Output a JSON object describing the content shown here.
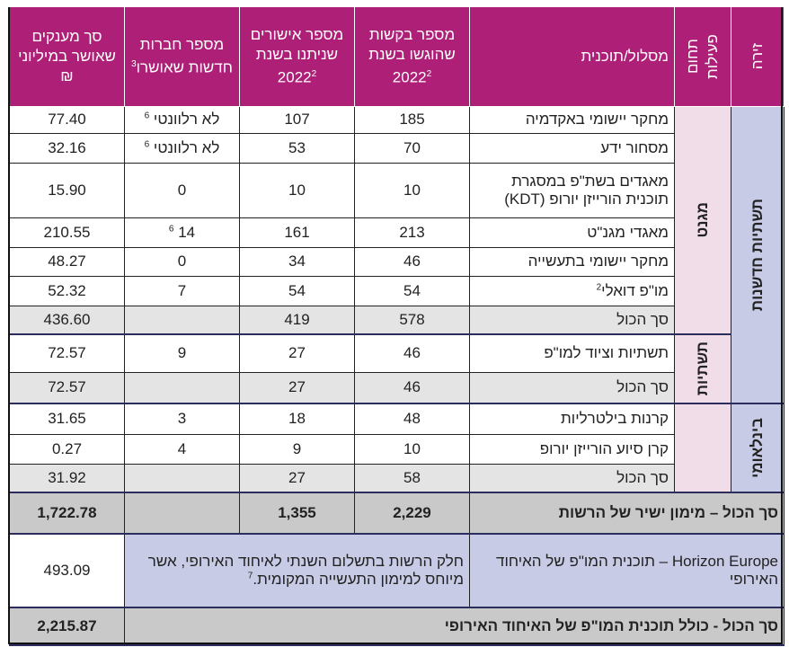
{
  "header": {
    "arena": "זירה",
    "area": "תחום פעילות",
    "program": "מסלול/תוכנית",
    "requests": "מספר בקשות שהוגשו בשנת 2022",
    "requests_sup": "2",
    "approvals": "מספר אישורים שניתנו בשנת 2022",
    "approvals_sup": "2",
    "new_companies": "מספר חברות חדשות שאושרו",
    "new_companies_sup": "3",
    "amount": "סך מענקים שאושר במיליוני ₪"
  },
  "groups": [
    {
      "arena": "תשתיות חדשנות",
      "area": "מגנט",
      "rows": [
        {
          "program": "מחקר יישומי באקדמיה",
          "requests": "185",
          "approvals": "107",
          "new_companies": "לא רלוונטי",
          "nc_sup": "6",
          "amount": "77.40"
        },
        {
          "program": "מסחור ידע",
          "requests": "70",
          "approvals": "53",
          "new_companies": "לא רלוונטי",
          "nc_sup": "6",
          "amount": "32.16"
        },
        {
          "program": "מאגדים בשת\"פ במסגרת תוכנית הורייזן יורופ (KDT)",
          "requests": "10",
          "approvals": "10",
          "new_companies": "0",
          "amount": "15.90"
        },
        {
          "program": "מאגדי מגנ\"ט",
          "requests": "213",
          "approvals": "161",
          "new_companies": "14",
          "nc_sup": "6",
          "amount": "210.55"
        },
        {
          "program": "מחקר יישומי בתעשייה",
          "requests": "46",
          "approvals": "34",
          "new_companies": "0",
          "amount": "48.27"
        },
        {
          "program": "מו\"פ דואלי",
          "prog_sup": "2",
          "requests": "54",
          "approvals": "54",
          "new_companies": "7",
          "amount": "52.32"
        }
      ],
      "subtotal": {
        "label": "סך הכול",
        "requests": "578",
        "approvals": "419",
        "amount": "436.60"
      }
    },
    {
      "area": "תשתיות",
      "rows": [
        {
          "program": "תשתיות וציוד למו\"פ",
          "requests": "46",
          "approvals": "27",
          "new_companies": "9",
          "amount": "72.57"
        }
      ],
      "subtotal": {
        "label": "סך הכול",
        "requests": "46",
        "approvals": "27",
        "amount": "72.57"
      }
    },
    {
      "arena": "בינלאומי",
      "area": "",
      "rows": [
        {
          "program": "קרנות בילטרליות",
          "requests": "48",
          "approvals": "18",
          "new_companies": "3",
          "amount": "31.65"
        },
        {
          "program": "קרן סיוע הורייזן יורופ",
          "requests": "10",
          "approvals": "9",
          "new_companies": "4",
          "amount": "0.27"
        }
      ],
      "subtotal": {
        "label": "סך הכול",
        "requests": "58",
        "approvals": "27",
        "amount": "31.92"
      }
    }
  ],
  "total_direct": {
    "label": "סך הכול – מימון ישיר של הרשות",
    "requests": "2,229",
    "approvals": "1,355",
    "amount": "1,722.78"
  },
  "horizon": {
    "label": "Horizon Europe – תוכנית המו\"פ של האיחוד האירופי",
    "note": "חלק הרשות בתשלום השנתי לאיחוד האירופי, אשר מיוחס למימון התעשייה המקומית.",
    "note_sup": "7",
    "amount": "493.09"
  },
  "grand_total": {
    "label": "סך הכול - כולל תוכנית המו\"פ של האיחוד האירופי",
    "amount": "2,215.87"
  },
  "colors": {
    "header": "#ae1f77",
    "arena": "#c8cbe6",
    "area": "#f0dde8",
    "subtotal": "#e4e4e4",
    "total": "#c9c9c9"
  }
}
